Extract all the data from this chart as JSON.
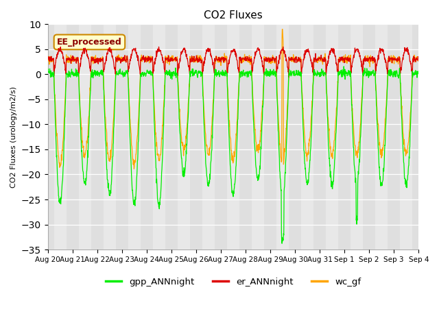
{
  "title": "CO2 Fluxes",
  "ylabel": "CO2 Fluxes (urology/m2/s)",
  "ylim": [
    -35,
    10
  ],
  "yticks": [
    -35,
    -30,
    -25,
    -20,
    -15,
    -10,
    -5,
    0,
    5,
    10
  ],
  "n_days": 15,
  "points_per_day": 96,
  "gpp_color": "#00ee00",
  "er_color": "#dd0000",
  "wc_color": "#ffa500",
  "plot_bg_light": "#e8e8e8",
  "plot_bg_dark": "#d8d8d8",
  "legend_items": [
    "gpp_ANNnight",
    "er_ANNnight",
    "wc_gf"
  ],
  "annotation_text": "EE_processed",
  "annotation_bg": "#ffffcc",
  "annotation_border": "#cc8800",
  "tick_labels": [
    "Aug 20",
    "Aug 21",
    "Aug 22",
    "Aug 23",
    "Aug 24",
    "Aug 25",
    "Aug 26",
    "Aug 27",
    "Aug 28",
    "Aug 29",
    "Aug 30",
    "Aug 31",
    "Sep 1",
    "Sep 2",
    "Sep 3",
    "Sep 4"
  ]
}
